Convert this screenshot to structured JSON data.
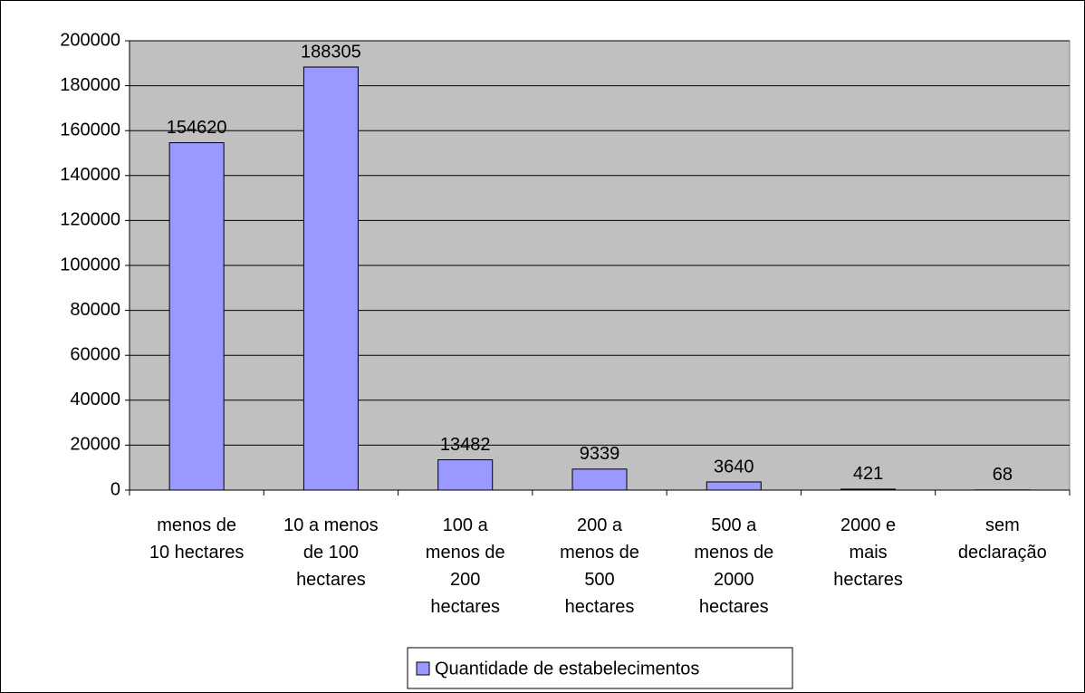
{
  "chart_data": {
    "type": "bar",
    "categories": [
      [
        "menos de",
        "10 hectares"
      ],
      [
        "10 a menos",
        "de 100",
        "hectares"
      ],
      [
        "100 a",
        "menos de",
        "200",
        "hectares"
      ],
      [
        "200 a",
        "menos de",
        "500",
        "hectares"
      ],
      [
        "500 a",
        "menos de",
        "2000",
        "hectares"
      ],
      [
        "2000 e",
        "mais",
        "hectares"
      ],
      [
        "sem",
        "declaração"
      ]
    ],
    "series": [
      {
        "name": "Quantidade de estabelecimentos",
        "color": "#9999ff",
        "values": [
          154620,
          188305,
          13482,
          9339,
          3640,
          421,
          68
        ]
      }
    ],
    "ylim": [
      0,
      200000
    ],
    "yticks": [
      0,
      20000,
      40000,
      60000,
      80000,
      100000,
      120000,
      140000,
      160000,
      180000,
      200000
    ],
    "grid": true,
    "legend": "bottom"
  }
}
